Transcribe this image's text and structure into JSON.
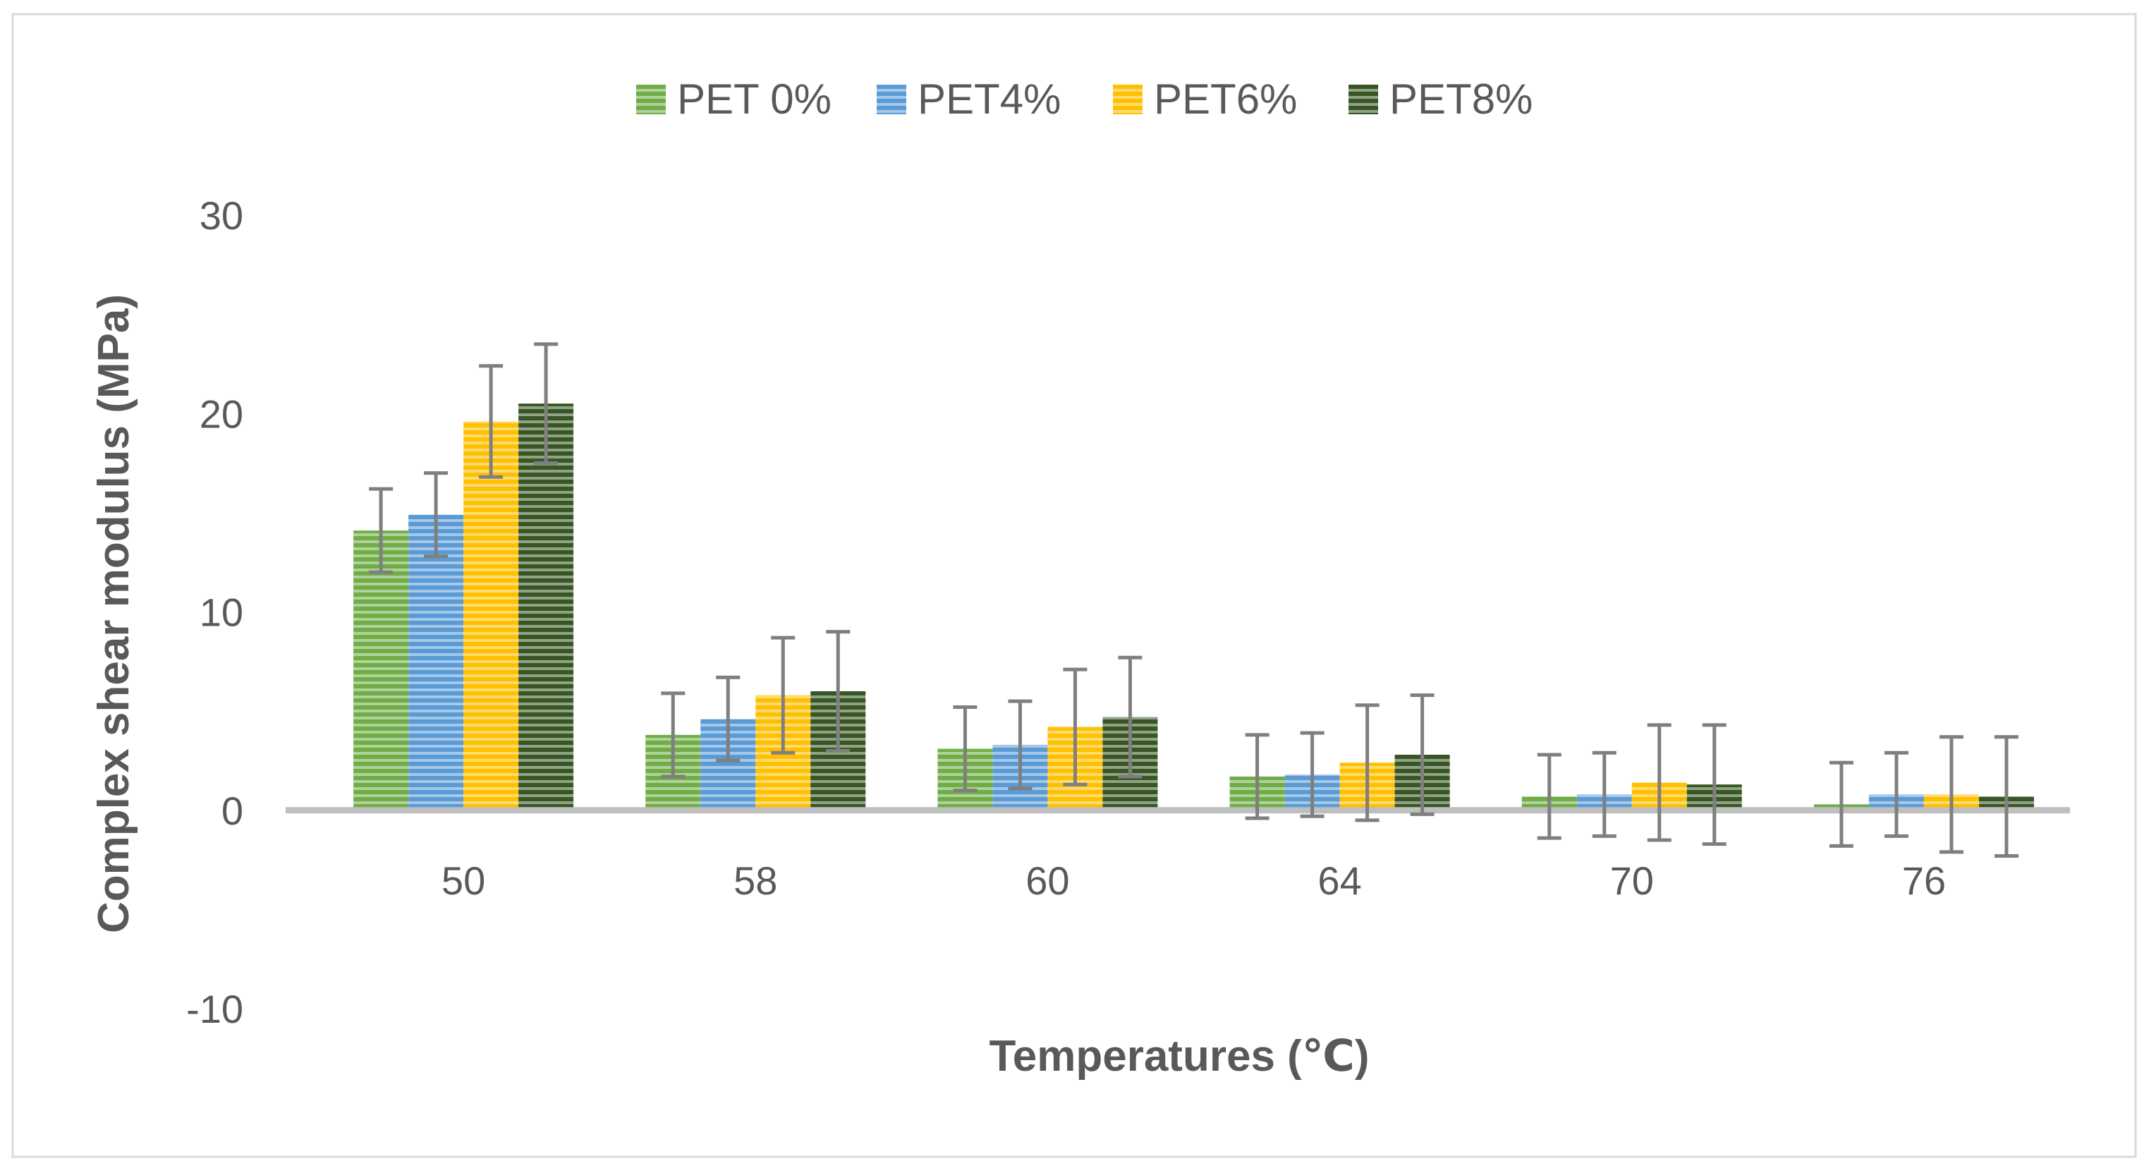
{
  "chart_data": {
    "type": "bar",
    "title": "",
    "xlabel": "Temperatures (℃)",
    "ylabel": "Complex shear modulus (MPa)",
    "categories": [
      "50",
      "58",
      "60",
      "64",
      "70",
      "76"
    ],
    "ylim": [
      -10,
      30
    ],
    "yticks": [
      -10,
      0,
      10,
      20,
      30
    ],
    "grid": false,
    "legend_position": "top",
    "series": [
      {
        "name": "PET 0%",
        "color": "#70ad47",
        "values": [
          14.1,
          3.8,
          3.1,
          1.7,
          0.7,
          0.3
        ],
        "error": [
          2.1,
          2.1,
          2.1,
          2.1,
          2.1,
          2.1
        ]
      },
      {
        "name": "PET4%",
        "color": "#5b9bd5",
        "values": [
          14.9,
          4.6,
          3.3,
          1.8,
          0.8,
          0.8
        ],
        "error": [
          2.1,
          2.1,
          2.2,
          2.1,
          2.1,
          2.1
        ]
      },
      {
        "name": "PET6%",
        "color": "#ffc000",
        "values": [
          19.6,
          5.8,
          4.2,
          2.4,
          1.4,
          0.8
        ],
        "error": [
          2.8,
          2.9,
          2.9,
          2.9,
          2.9,
          2.9
        ]
      },
      {
        "name": "PET8%",
        "color": "#375623",
        "values": [
          20.5,
          6.0,
          4.7,
          2.8,
          1.3,
          0.7
        ],
        "error": [
          3.0,
          3.0,
          3.0,
          3.0,
          3.0,
          3.0
        ]
      }
    ]
  }
}
